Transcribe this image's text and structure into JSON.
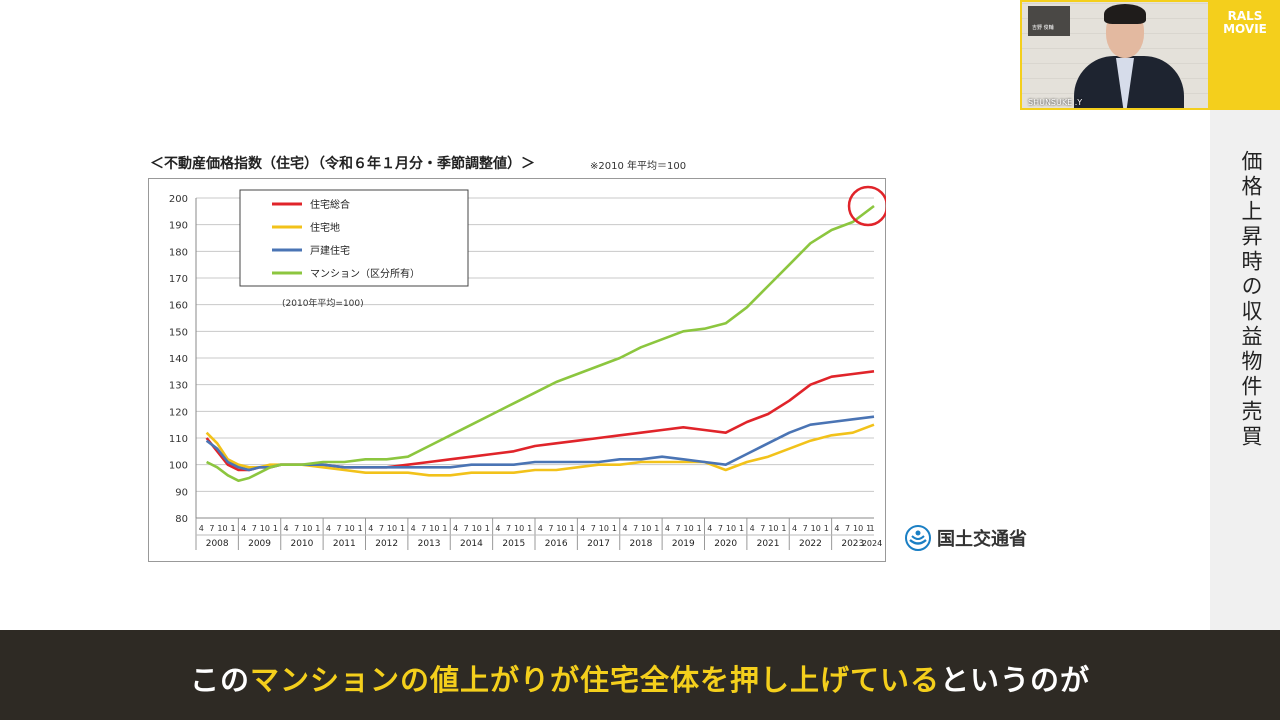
{
  "brand": {
    "line1": "RALS",
    "line2": "MOVIE"
  },
  "webcam": {
    "name": "SHUNSUKE .Y",
    "sign_text": "吉野 俊輔"
  },
  "sidebar": {
    "title": "価格上昇時の収益物件売買"
  },
  "chart_header": {
    "title": "＜不動産価格指数（住宅）（令和６年１月分・季節調整値）＞",
    "note": "※2010 年平均＝100"
  },
  "source": {
    "label": "国土交通省"
  },
  "caption": {
    "part1": "この",
    "part2_highlight": "マンションの値上がりが住宅全体を押し上げている",
    "part3": "というのが"
  },
  "colors": {
    "accent_yellow": "#f4cf1c",
    "caption_bg": "#2e2a24",
    "highlight_circle": "#e0242a"
  },
  "chart_data": {
    "type": "line",
    "title": "＜不動産価格指数（住宅）（令和６年１月分・季節調整値）＞",
    "inner_note": "(2010年平均=100)",
    "ylim": [
      80,
      200
    ],
    "yticks": [
      80,
      90,
      100,
      110,
      120,
      130,
      140,
      150,
      160,
      170,
      180,
      190,
      200
    ],
    "x_month_tick_labels": [
      "4",
      "7",
      "10",
      "1"
    ],
    "x_year_labels": [
      "2008",
      "2009",
      "2010",
      "2011",
      "2012",
      "2013",
      "2014",
      "2015",
      "2016",
      "2017",
      "2018",
      "2019",
      "2020",
      "2021",
      "2022",
      "2023",
      "2024"
    ],
    "grid": true,
    "legend_position": "top-left",
    "x": [
      2008.25,
      2008.5,
      2008.75,
      2009.0,
      2009.25,
      2009.5,
      2009.75,
      2010.0,
      2010.5,
      2011.0,
      2011.5,
      2012.0,
      2012.5,
      2013.0,
      2013.5,
      2014.0,
      2014.5,
      2015.0,
      2015.5,
      2016.0,
      2016.5,
      2017.0,
      2017.5,
      2018.0,
      2018.5,
      2019.0,
      2019.5,
      2020.0,
      2020.5,
      2021.0,
      2021.5,
      2022.0,
      2022.5,
      2023.0,
      2023.5,
      2024.0
    ],
    "series": [
      {
        "name": "住宅総合",
        "color": "#e0242a",
        "values": [
          110,
          105,
          100,
          98,
          98,
          99,
          99,
          100,
          100,
          100,
          99,
          99,
          99,
          100,
          101,
          102,
          103,
          104,
          105,
          107,
          108,
          109,
          110,
          111,
          112,
          113,
          114,
          113,
          112,
          116,
          119,
          124,
          130,
          133,
          134,
          135
        ]
      },
      {
        "name": "住宅地",
        "color": "#f2c21a",
        "values": [
          112,
          108,
          102,
          100,
          99,
          99,
          100,
          100,
          100,
          99,
          98,
          97,
          97,
          97,
          96,
          96,
          97,
          97,
          97,
          98,
          98,
          99,
          100,
          100,
          101,
          101,
          101,
          101,
          98,
          101,
          103,
          106,
          109,
          111,
          112,
          115
        ]
      },
      {
        "name": "戸建住宅",
        "color": "#4a74b4",
        "values": [
          109,
          106,
          101,
          99,
          98,
          99,
          99,
          100,
          100,
          100,
          99,
          99,
          99,
          99,
          99,
          99,
          100,
          100,
          100,
          101,
          101,
          101,
          101,
          102,
          102,
          103,
          102,
          101,
          100,
          104,
          108,
          112,
          115,
          116,
          117,
          118
        ]
      },
      {
        "name": "マンション（区分所有）",
        "color": "#8cc63f",
        "values": [
          101,
          99,
          96,
          94,
          95,
          97,
          99,
          100,
          100,
          101,
          101,
          102,
          102,
          103,
          107,
          111,
          115,
          119,
          123,
          127,
          131,
          134,
          137,
          140,
          144,
          147,
          150,
          151,
          153,
          159,
          167,
          175,
          183,
          188,
          191,
          197
        ]
      }
    ]
  }
}
